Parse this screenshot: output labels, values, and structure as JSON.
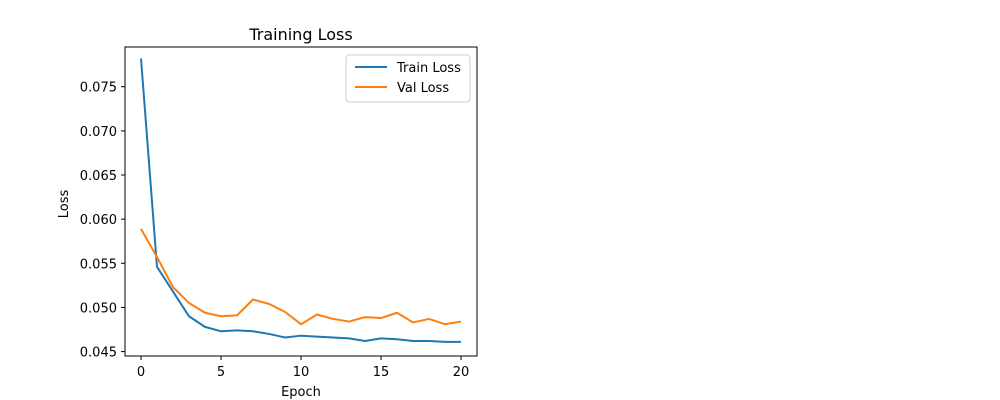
{
  "chart_data": {
    "type": "line",
    "title": "Training Loss",
    "xlabel": "Epoch",
    "ylabel": "Loss",
    "xlim": [
      -1,
      21
    ],
    "ylim": [
      0.0445,
      0.0795
    ],
    "xticks": [
      0,
      5,
      10,
      15,
      20
    ],
    "yticks": [
      0.045,
      0.05,
      0.055,
      0.06,
      0.065,
      0.07,
      0.075
    ],
    "ytick_labels": [
      "0.045",
      "0.050",
      "0.055",
      "0.060",
      "0.065",
      "0.070",
      "0.075"
    ],
    "xtick_labels": [
      "0",
      "5",
      "10",
      "15",
      "20"
    ],
    "grid": false,
    "legend_position": "top-right",
    "x": [
      0,
      1,
      2,
      3,
      4,
      5,
      6,
      7,
      8,
      9,
      10,
      11,
      12,
      13,
      14,
      15,
      16,
      17,
      18,
      19,
      20
    ],
    "series": [
      {
        "name": "Train Loss",
        "color": "#1f77b4",
        "values": [
          0.0782,
          0.0546,
          0.0518,
          0.049,
          0.0478,
          0.0473,
          0.0474,
          0.0473,
          0.047,
          0.0466,
          0.0468,
          0.0467,
          0.0466,
          0.0465,
          0.0462,
          0.0465,
          0.0464,
          0.0462,
          0.0462,
          0.0461,
          0.0461
        ]
      },
      {
        "name": "Val Loss",
        "color": "#ff7f0e",
        "values": [
          0.0589,
          0.0557,
          0.0523,
          0.0505,
          0.0494,
          0.049,
          0.0491,
          0.0509,
          0.0504,
          0.0495,
          0.0481,
          0.0492,
          0.0487,
          0.0484,
          0.0489,
          0.0488,
          0.0494,
          0.0483,
          0.0487,
          0.0481,
          0.0484
        ]
      }
    ]
  }
}
